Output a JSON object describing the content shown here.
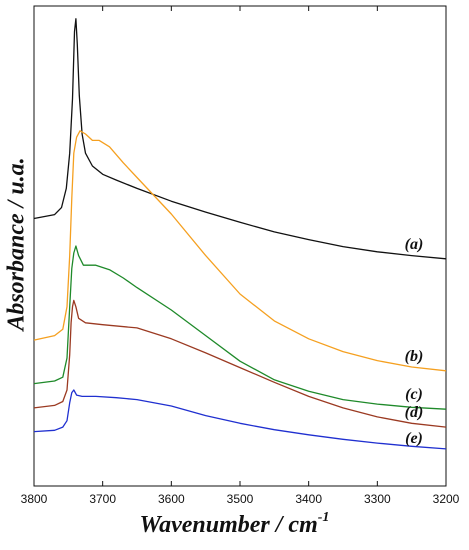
{
  "chart_data": {
    "type": "line",
    "title": "",
    "xlabel": "Wavenumber / cm",
    "xlabel_sup": "-1",
    "ylabel": "Absorbance / u.a.",
    "xlim": [
      3800,
      3200
    ],
    "x_reversed": true,
    "x_ticks": [
      3800,
      3700,
      3600,
      3500,
      3400,
      3300,
      3200
    ],
    "y_ticks_shown": false,
    "grid": false,
    "legend": "none",
    "series": [
      {
        "name": "(a)",
        "color": "#111111",
        "points": [
          [
            3800,
            4.68
          ],
          [
            3770,
            4.74
          ],
          [
            3760,
            4.85
          ],
          [
            3753,
            5.15
          ],
          [
            3748,
            5.7
          ],
          [
            3744,
            6.55
          ],
          [
            3741,
            7.6
          ],
          [
            3739,
            7.8
          ],
          [
            3737,
            7.4
          ],
          [
            3734,
            6.6
          ],
          [
            3730,
            6.0
          ],
          [
            3725,
            5.7
          ],
          [
            3715,
            5.5
          ],
          [
            3700,
            5.37
          ],
          [
            3680,
            5.28
          ],
          [
            3650,
            5.15
          ],
          [
            3600,
            4.95
          ],
          [
            3550,
            4.78
          ],
          [
            3500,
            4.62
          ],
          [
            3450,
            4.47
          ],
          [
            3400,
            4.35
          ],
          [
            3350,
            4.24
          ],
          [
            3300,
            4.16
          ],
          [
            3250,
            4.1
          ],
          [
            3200,
            4.05
          ]
        ]
      },
      {
        "name": "(b)",
        "color": "#f5a020",
        "points": [
          [
            3800,
            2.78
          ],
          [
            3770,
            2.85
          ],
          [
            3758,
            2.95
          ],
          [
            3752,
            3.3
          ],
          [
            3748,
            4.1
          ],
          [
            3745,
            5.0
          ],
          [
            3742,
            5.7
          ],
          [
            3738,
            5.95
          ],
          [
            3733,
            6.05
          ],
          [
            3725,
            6.0
          ],
          [
            3715,
            5.9
          ],
          [
            3705,
            5.9
          ],
          [
            3690,
            5.8
          ],
          [
            3670,
            5.55
          ],
          [
            3650,
            5.32
          ],
          [
            3600,
            4.75
          ],
          [
            3550,
            4.1
          ],
          [
            3500,
            3.5
          ],
          [
            3450,
            3.08
          ],
          [
            3400,
            2.8
          ],
          [
            3350,
            2.6
          ],
          [
            3300,
            2.46
          ],
          [
            3250,
            2.36
          ],
          [
            3200,
            2.3
          ]
        ]
      },
      {
        "name": "(c)",
        "color": "#1f8a2a",
        "points": [
          [
            3800,
            2.1
          ],
          [
            3770,
            2.14
          ],
          [
            3758,
            2.2
          ],
          [
            3752,
            2.5
          ],
          [
            3748,
            3.3
          ],
          [
            3745,
            3.9
          ],
          [
            3742,
            4.14
          ],
          [
            3739,
            4.25
          ],
          [
            3735,
            4.1
          ],
          [
            3728,
            3.95
          ],
          [
            3710,
            3.95
          ],
          [
            3690,
            3.88
          ],
          [
            3670,
            3.75
          ],
          [
            3650,
            3.6
          ],
          [
            3600,
            3.25
          ],
          [
            3550,
            2.85
          ],
          [
            3500,
            2.45
          ],
          [
            3450,
            2.16
          ],
          [
            3400,
            1.98
          ],
          [
            3350,
            1.85
          ],
          [
            3300,
            1.78
          ],
          [
            3250,
            1.73
          ],
          [
            3200,
            1.7
          ]
        ]
      },
      {
        "name": "(d)",
        "color": "#9b3a22",
        "points": [
          [
            3800,
            1.72
          ],
          [
            3770,
            1.76
          ],
          [
            3758,
            1.82
          ],
          [
            3752,
            2.0
          ],
          [
            3748,
            2.55
          ],
          [
            3746,
            3.05
          ],
          [
            3744,
            3.3
          ],
          [
            3742,
            3.4
          ],
          [
            3739,
            3.3
          ],
          [
            3735,
            3.12
          ],
          [
            3725,
            3.05
          ],
          [
            3700,
            3.02
          ],
          [
            3650,
            2.97
          ],
          [
            3600,
            2.8
          ],
          [
            3550,
            2.58
          ],
          [
            3500,
            2.35
          ],
          [
            3450,
            2.12
          ],
          [
            3400,
            1.9
          ],
          [
            3350,
            1.72
          ],
          [
            3300,
            1.58
          ],
          [
            3250,
            1.48
          ],
          [
            3200,
            1.42
          ]
        ]
      },
      {
        "name": "(e)",
        "color": "#2030d0",
        "points": [
          [
            3800,
            1.35
          ],
          [
            3770,
            1.37
          ],
          [
            3758,
            1.42
          ],
          [
            3752,
            1.52
          ],
          [
            3748,
            1.8
          ],
          [
            3745,
            1.96
          ],
          [
            3742,
            2.0
          ],
          [
            3738,
            1.92
          ],
          [
            3730,
            1.9
          ],
          [
            3710,
            1.9
          ],
          [
            3680,
            1.88
          ],
          [
            3650,
            1.85
          ],
          [
            3600,
            1.75
          ],
          [
            3550,
            1.6
          ],
          [
            3500,
            1.48
          ],
          [
            3450,
            1.38
          ],
          [
            3400,
            1.3
          ],
          [
            3350,
            1.23
          ],
          [
            3300,
            1.17
          ],
          [
            3250,
            1.12
          ],
          [
            3200,
            1.08
          ]
        ]
      }
    ]
  }
}
